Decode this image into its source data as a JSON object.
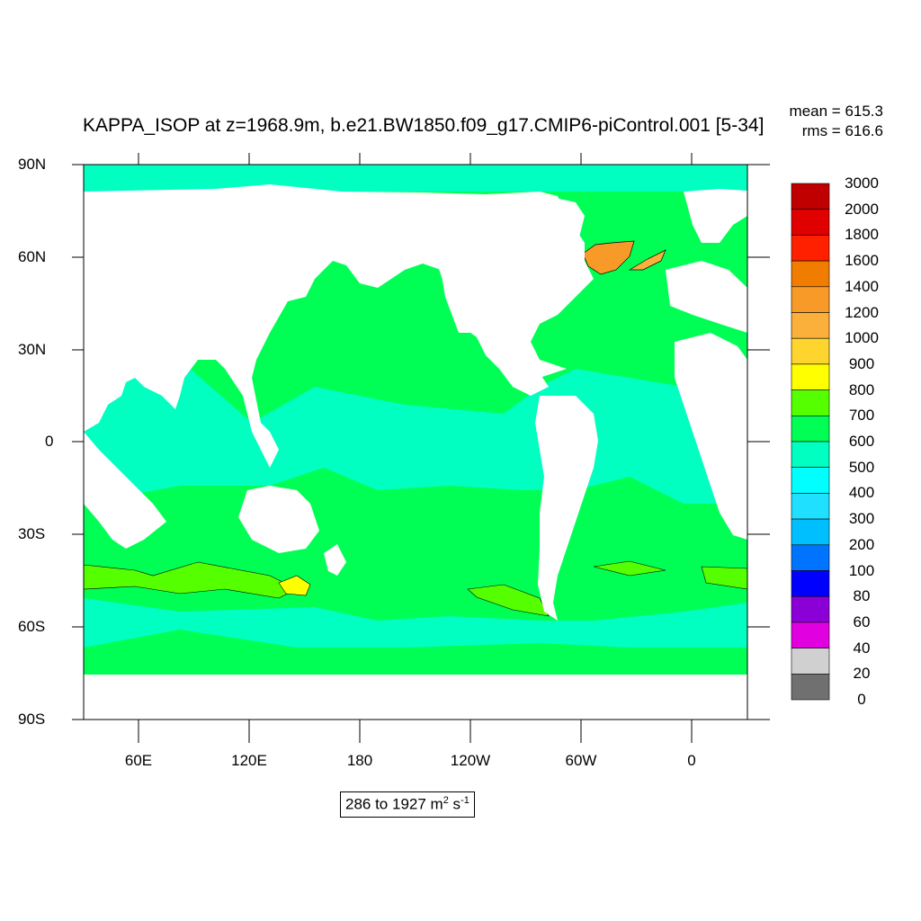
{
  "title": "KAPPA_ISOP at z=1968.9m, b.e21.BW1850.f09_g17.CMIP6-piControl.001 [5-34]",
  "stats": {
    "mean": "mean = 615.3",
    "rms": "rms = 616.6"
  },
  "latitude_labels": [
    "90N",
    "60N",
    "30N",
    "0",
    "30S",
    "60S",
    "90S"
  ],
  "longitude_labels": [
    "60E",
    "120E",
    "180",
    "120W",
    "60W",
    "0"
  ],
  "colorbar": {
    "labels": [
      "3000",
      "2000",
      "1800",
      "1600",
      "1400",
      "1200",
      "1000",
      "900",
      "800",
      "700",
      "600",
      "500",
      "400",
      "300",
      "200",
      "100",
      "80",
      "60",
      "40",
      "20",
      "0"
    ],
    "colors": [
      "#c00000",
      "#e00000",
      "#ff2000",
      "#f07d00",
      "#f89a28",
      "#fbb03b",
      "#fed42f",
      "#ffff00",
      "#55ff00",
      "#00ff55",
      "#00ffc0",
      "#00ffff",
      "#1fe0ff",
      "#00bfff",
      "#0073ff",
      "#0000ff",
      "#8c00d8",
      "#e000e0",
      "#d0d0d0",
      "#707070"
    ]
  },
  "range_text": {
    "value": "286 to 1927 m",
    "unit_sup": "2",
    "mid": " s",
    "unit_sup2": "-1"
  },
  "colors": {
    "land": "#ffffff",
    "ocean_main": "#00ff55",
    "ocean_light": "#00ffc0",
    "high_band": "#55ff00",
    "peak": "#ffff00"
  }
}
